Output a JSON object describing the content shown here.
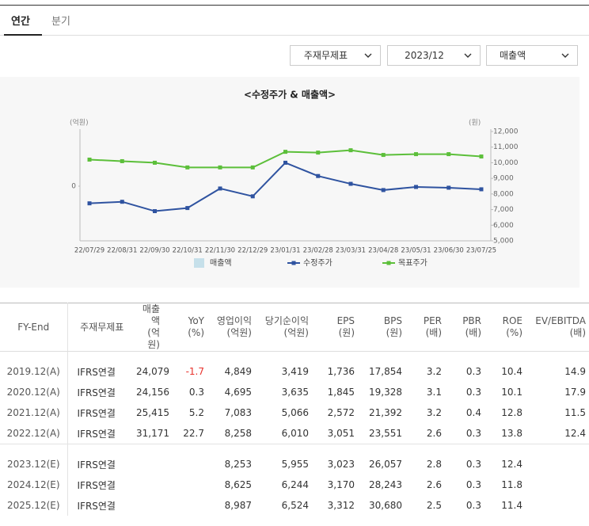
{
  "tabs": [
    "연간",
    "분기"
  ],
  "dropdowns": [
    "주재무제표",
    "2023/12",
    "매출액"
  ],
  "chart_data": {
    "type": "line",
    "title": "<수정주가 & 매출액>",
    "y_label": "(억원)",
    "y2_label": "(원)",
    "categories": [
      "22/07/29",
      "22/08/31",
      "22/09/30",
      "22/10/31",
      "22/11/30",
      "22/12/29",
      "23/01/31",
      "23/02/28",
      "23/03/31",
      "23/04/28",
      "23/05/31",
      "23/06/30",
      "23/07/25"
    ],
    "ylim": [
      -1,
      1
    ],
    "yticks": [
      0
    ],
    "y2lim": [
      5000,
      12000
    ],
    "y2ticks": [
      {
        "value": 12000,
        "label": "12,000"
      },
      {
        "value": 11000,
        "label": "11,000"
      },
      {
        "value": 10000,
        "label": "10,000"
      },
      {
        "value": 9000,
        "label": "9,000"
      },
      {
        "value": 8000,
        "label": "8,000"
      },
      {
        "value": 7000,
        "label": "7,000"
      },
      {
        "value": 6000,
        "label": "6,000"
      },
      {
        "value": 5000,
        "label": "5,000"
      }
    ],
    "series": [
      {
        "name": "매출액",
        "color": "#c6e0ea",
        "values": [
          null,
          null,
          null,
          null,
          null,
          null,
          null,
          null,
          null,
          null,
          null,
          null,
          null
        ]
      },
      {
        "name": "수정주가",
        "color": "#2f53a0",
        "axis": "y2",
        "values": [
          7400,
          7500,
          6900,
          7100,
          8350,
          7850,
          10000,
          9150,
          8650,
          8250,
          8450,
          8400,
          8300
        ]
      },
      {
        "name": "목표주가",
        "color": "#5cbf3a",
        "axis": "y2",
        "values": [
          10200,
          10100,
          10000,
          9700,
          9700,
          9700,
          10700,
          10650,
          10800,
          10500,
          10550,
          10550,
          10400
        ]
      }
    ]
  },
  "table": {
    "header": [
      {
        "name": "FY-End"
      },
      {
        "name": "주재무제표"
      },
      {
        "name": "매출액",
        "unit": "(억원)"
      },
      {
        "name": "YoY",
        "unit": "(%)"
      },
      {
        "name": "영업이익",
        "unit": "(억원)"
      },
      {
        "name": "당기순이익",
        "unit": "(억원)"
      },
      {
        "name": "EPS",
        "unit": "(원)"
      },
      {
        "name": "BPS",
        "unit": "(원)"
      },
      {
        "name": "PER",
        "unit": "(배)"
      },
      {
        "name": "PBR",
        "unit": "(배)"
      },
      {
        "name": "ROE",
        "unit": "(%)"
      },
      {
        "name": "EV/EBITDA",
        "unit": "(배)"
      }
    ],
    "groups": [
      [
        [
          "2019.12(A)",
          "IFRS연결",
          "24,079",
          "-1.7",
          "4,849",
          "3,419",
          "1,736",
          "17,854",
          "3.2",
          "0.3",
          "10.4",
          "14.9"
        ],
        [
          "2020.12(A)",
          "IFRS연결",
          "24,156",
          "0.3",
          "4,695",
          "3,635",
          "1,845",
          "19,328",
          "3.1",
          "0.3",
          "10.1",
          "17.9"
        ],
        [
          "2021.12(A)",
          "IFRS연결",
          "25,415",
          "5.2",
          "7,083",
          "5,066",
          "2,572",
          "21,392",
          "3.2",
          "0.4",
          "12.8",
          "11.5"
        ],
        [
          "2022.12(A)",
          "IFRS연결",
          "31,171",
          "22.7",
          "8,258",
          "6,010",
          "3,051",
          "23,551",
          "2.6",
          "0.3",
          "13.8",
          "12.4"
        ]
      ],
      [
        [
          "2023.12(E)",
          "IFRS연결",
          null,
          null,
          "8,253",
          "5,955",
          "3,023",
          "26,057",
          "2.8",
          "0.3",
          "12.4",
          null
        ],
        [
          "2024.12(E)",
          "IFRS연결",
          null,
          null,
          "8,625",
          "6,244",
          "3,170",
          "28,243",
          "2.6",
          "0.3",
          "11.8",
          null
        ],
        [
          "2025.12(E)",
          "IFRS연결",
          null,
          null,
          "8,987",
          "6,524",
          "3,312",
          "30,680",
          "2.5",
          "0.3",
          "11.4",
          null
        ]
      ]
    ]
  }
}
